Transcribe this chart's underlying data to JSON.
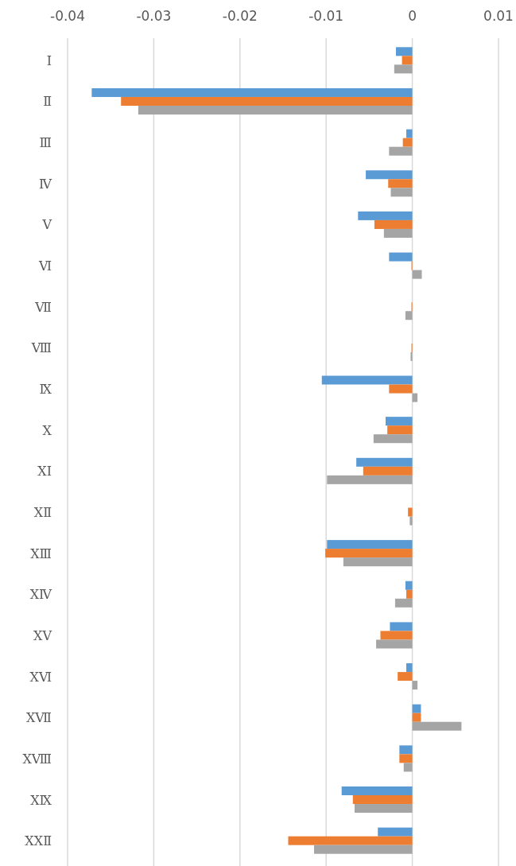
{
  "chart_data": {
    "type": "bar",
    "orientation": "horizontal",
    "categories": [
      "Ⅰ",
      "Ⅱ",
      "Ⅲ",
      "Ⅳ",
      "Ⅴ",
      "Ⅵ",
      "Ⅶ",
      "Ⅷ",
      "Ⅸ",
      "Ⅹ",
      "ⅩⅠ",
      "ⅩⅡ",
      "ⅩⅢ",
      "ⅩⅣ",
      "ⅩⅤ",
      "ⅩⅥ",
      "ⅩⅦ",
      "ⅩⅧ",
      "ⅩⅨ",
      "ⅩⅩⅡ"
    ],
    "series": [
      {
        "color": "#5b9bd5",
        "values": [
          -0.0019,
          -0.0372,
          -0.0007,
          -0.0054,
          -0.0063,
          -0.0027,
          0,
          0,
          -0.0105,
          -0.0031,
          -0.0065,
          0,
          -0.0099,
          -0.0008,
          -0.0026,
          -0.0007,
          0.001,
          -0.0015,
          -0.0082,
          -0.004
        ]
      },
      {
        "color": "#ed7d31",
        "values": [
          -0.0012,
          -0.0338,
          -0.0011,
          -0.0028,
          -0.0044,
          -0.0001,
          -0.0001,
          -0.0001,
          -0.0027,
          -0.0029,
          -0.0057,
          -0.0005,
          -0.0101,
          -0.0007,
          -0.0037,
          -0.0017,
          0.001,
          -0.0015,
          -0.0069,
          -0.0144
        ]
      },
      {
        "color": "#a5a5a5",
        "values": [
          -0.0021,
          -0.0318,
          -0.0027,
          -0.0025,
          -0.0033,
          0.0011,
          -0.0008,
          -0.0002,
          0.0006,
          -0.0045,
          -0.0099,
          -0.0003,
          -0.008,
          -0.002,
          -0.0042,
          0.0006,
          0.0057,
          -0.001,
          -0.0067,
          -0.0114
        ]
      }
    ],
    "xlim": [
      -0.04,
      0.01
    ],
    "xticks": [
      -0.04,
      -0.03,
      -0.02,
      -0.01,
      0,
      0.01
    ],
    "grid": "x"
  }
}
